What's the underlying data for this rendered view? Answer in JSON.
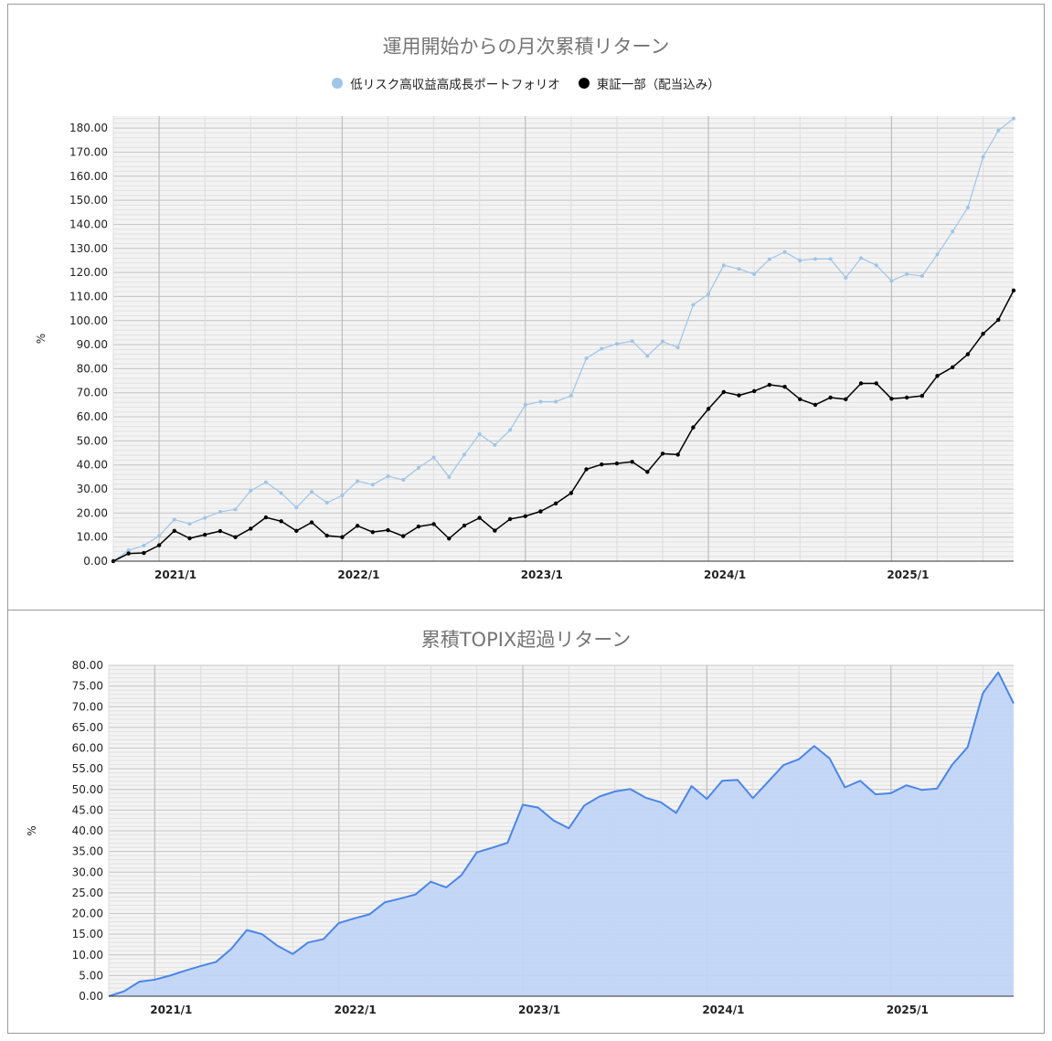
{
  "chart_data": [
    {
      "type": "line",
      "title": "運用開始からの月次累積リターン",
      "ylabel": "%",
      "ylim": [
        0,
        185
      ],
      "yticks": [
        "0.00",
        "10.00",
        "20.00",
        "30.00",
        "40.00",
        "50.00",
        "60.00",
        "70.00",
        "80.00",
        "90.00",
        "100.00",
        "110.00",
        "120.00",
        "130.00",
        "140.00",
        "150.00",
        "160.00",
        "170.00",
        "180.00"
      ],
      "xticks": [
        "2021/1",
        "2022/1",
        "2023/1",
        "2024/1",
        "2025/1"
      ],
      "x_start": "2020/10",
      "x_end": "2025/9",
      "legend_position": "top",
      "grid": true,
      "series": [
        {
          "name": "低リスク高収益高成長ポートフォリオ",
          "color": "#9fc5e8",
          "values": [
            0,
            4.5,
            6.5,
            10.5,
            17.3,
            15.5,
            18.0,
            20.5,
            21.5,
            29.3,
            32.8,
            28.3,
            22.3,
            28.8,
            24.3,
            27.3,
            33.3,
            31.8,
            35.3,
            33.8,
            38.8,
            43.1,
            35.0,
            44.3,
            52.8,
            48.3,
            54.5,
            65.0,
            66.3,
            66.3,
            68.8,
            84.3,
            88.3,
            90.3,
            91.5,
            85.3,
            91.3,
            88.8,
            106.5,
            111.0,
            123.0,
            121.5,
            119.3,
            125.5,
            128.5,
            125.0,
            125.6,
            125.6,
            117.8,
            126.0,
            123.0,
            116.5,
            119.3,
            118.5,
            127.5,
            137.0,
            147.0,
            168.0,
            179.0,
            184.0
          ]
        },
        {
          "name": "東証一部（配当込み）",
          "color": "#000000",
          "values": [
            0,
            3.2,
            3.4,
            6.6,
            12.6,
            9.5,
            11.0,
            12.5,
            10.0,
            13.5,
            18.2,
            16.6,
            12.6,
            16.1,
            10.6,
            10.0,
            14.7,
            12.1,
            12.9,
            10.4,
            14.4,
            15.4,
            9.4,
            14.8,
            18.0,
            12.7,
            17.5,
            18.7,
            20.7,
            24.0,
            28.3,
            38.2,
            40.2,
            40.6,
            41.3,
            37.1,
            44.7,
            44.3,
            55.6,
            63.3,
            70.3,
            68.9,
            70.7,
            73.3,
            72.5,
            67.3,
            65.0,
            68.0,
            67.3,
            73.9,
            73.9,
            67.5,
            68.0,
            68.7,
            77.0,
            80.6,
            86.0,
            94.5,
            100.3,
            112.5
          ]
        }
      ]
    },
    {
      "type": "area",
      "title": "累積TOPIX超過リターン",
      "ylabel": "%",
      "ylim": [
        0,
        80
      ],
      "yticks": [
        "0.00",
        "5.00",
        "10.00",
        "15.00",
        "20.00",
        "25.00",
        "30.00",
        "35.00",
        "40.00",
        "45.00",
        "50.00",
        "55.00",
        "60.00",
        "65.00",
        "70.00",
        "75.00",
        "80.00"
      ],
      "xticks": [
        "2021/1",
        "2022/1",
        "2023/1",
        "2024/1",
        "2025/1"
      ],
      "x_start": "2020/10",
      "x_end": "2025/9",
      "grid": true,
      "series": [
        {
          "color": "#4a86e8",
          "fill": "#c2d5f5",
          "values": [
            0,
            1.2,
            3.5,
            4.0,
            5.0,
            6.2,
            7.3,
            8.3,
            11.5,
            16.0,
            15.0,
            12.2,
            10.2,
            13.0,
            13.8,
            17.7,
            18.8,
            19.8,
            22.7,
            23.6,
            24.6,
            27.7,
            26.3,
            29.3,
            34.8,
            35.9,
            37.1,
            46.3,
            45.6,
            42.5,
            40.6,
            46.1,
            48.3,
            49.5,
            50.1,
            48.0,
            46.9,
            44.3,
            50.8,
            47.7,
            52.1,
            52.3,
            47.9,
            51.9,
            55.9,
            57.3,
            60.5,
            57.5,
            50.5,
            52.1,
            48.8,
            49.1,
            51.0,
            49.9,
            50.2,
            56.0,
            60.2,
            73.3,
            78.3,
            70.8
          ]
        }
      ]
    }
  ]
}
